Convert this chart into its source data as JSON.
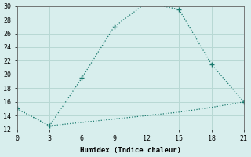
{
  "xlabel": "Humidex (Indice chaleur)",
  "x_upper": [
    0,
    3,
    6,
    9,
    12,
    15,
    18,
    21
  ],
  "y_upper": [
    15,
    12.5,
    19.5,
    27,
    30.5,
    29.5,
    21.5,
    16
  ],
  "x_lower": [
    0,
    3,
    6,
    9,
    12,
    15,
    18,
    21
  ],
  "y_lower": [
    15,
    12.5,
    13.0,
    13.5,
    14.0,
    14.5,
    15.2,
    16.0
  ],
  "line_color": "#1a7a6e",
  "bg_color": "#d8eeed",
  "grid_color": "#b8d8d4",
  "xlim": [
    0,
    21
  ],
  "ylim": [
    12,
    30
  ],
  "xticks": [
    0,
    3,
    6,
    9,
    12,
    15,
    18,
    21
  ],
  "yticks": [
    12,
    14,
    16,
    18,
    20,
    22,
    24,
    26,
    28,
    30
  ],
  "marker": "+"
}
